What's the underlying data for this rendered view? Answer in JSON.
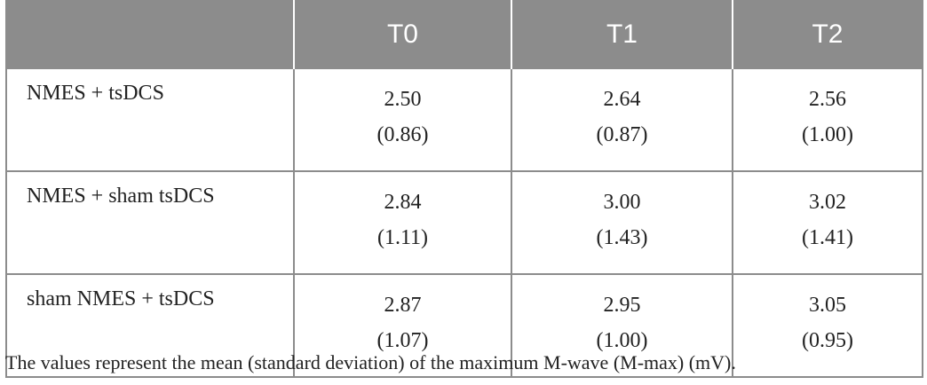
{
  "table": {
    "headers": [
      "",
      "T0",
      "T1",
      "T2"
    ],
    "rows": [
      {
        "label": "NMES + tsDCS",
        "cells": [
          {
            "mean": "2.50",
            "sd": "(0.86)"
          },
          {
            "mean": "2.64",
            "sd": "(0.87)"
          },
          {
            "mean": "2.56",
            "sd": "(1.00)"
          }
        ]
      },
      {
        "label": "NMES + sham tsDCS",
        "cells": [
          {
            "mean": "2.84",
            "sd": "(1.11)"
          },
          {
            "mean": "3.00",
            "sd": "(1.43)"
          },
          {
            "mean": "3.02",
            "sd": "(1.41)"
          }
        ]
      },
      {
        "label": "sham NMES + tsDCS",
        "cells": [
          {
            "mean": "2.87",
            "sd": "(1.07)"
          },
          {
            "mean": "2.95",
            "sd": "(1.00)"
          },
          {
            "mean": "3.05",
            "sd": "(0.95)"
          }
        ]
      }
    ]
  },
  "footnote": "The values represent the mean (standard deviation) of the maximum M-wave (M-max) (mV).",
  "colors": {
    "header_bg": "#8c8c8c",
    "header_text": "#ffffff",
    "border": "#8c8c8c",
    "text": "#222222"
  }
}
